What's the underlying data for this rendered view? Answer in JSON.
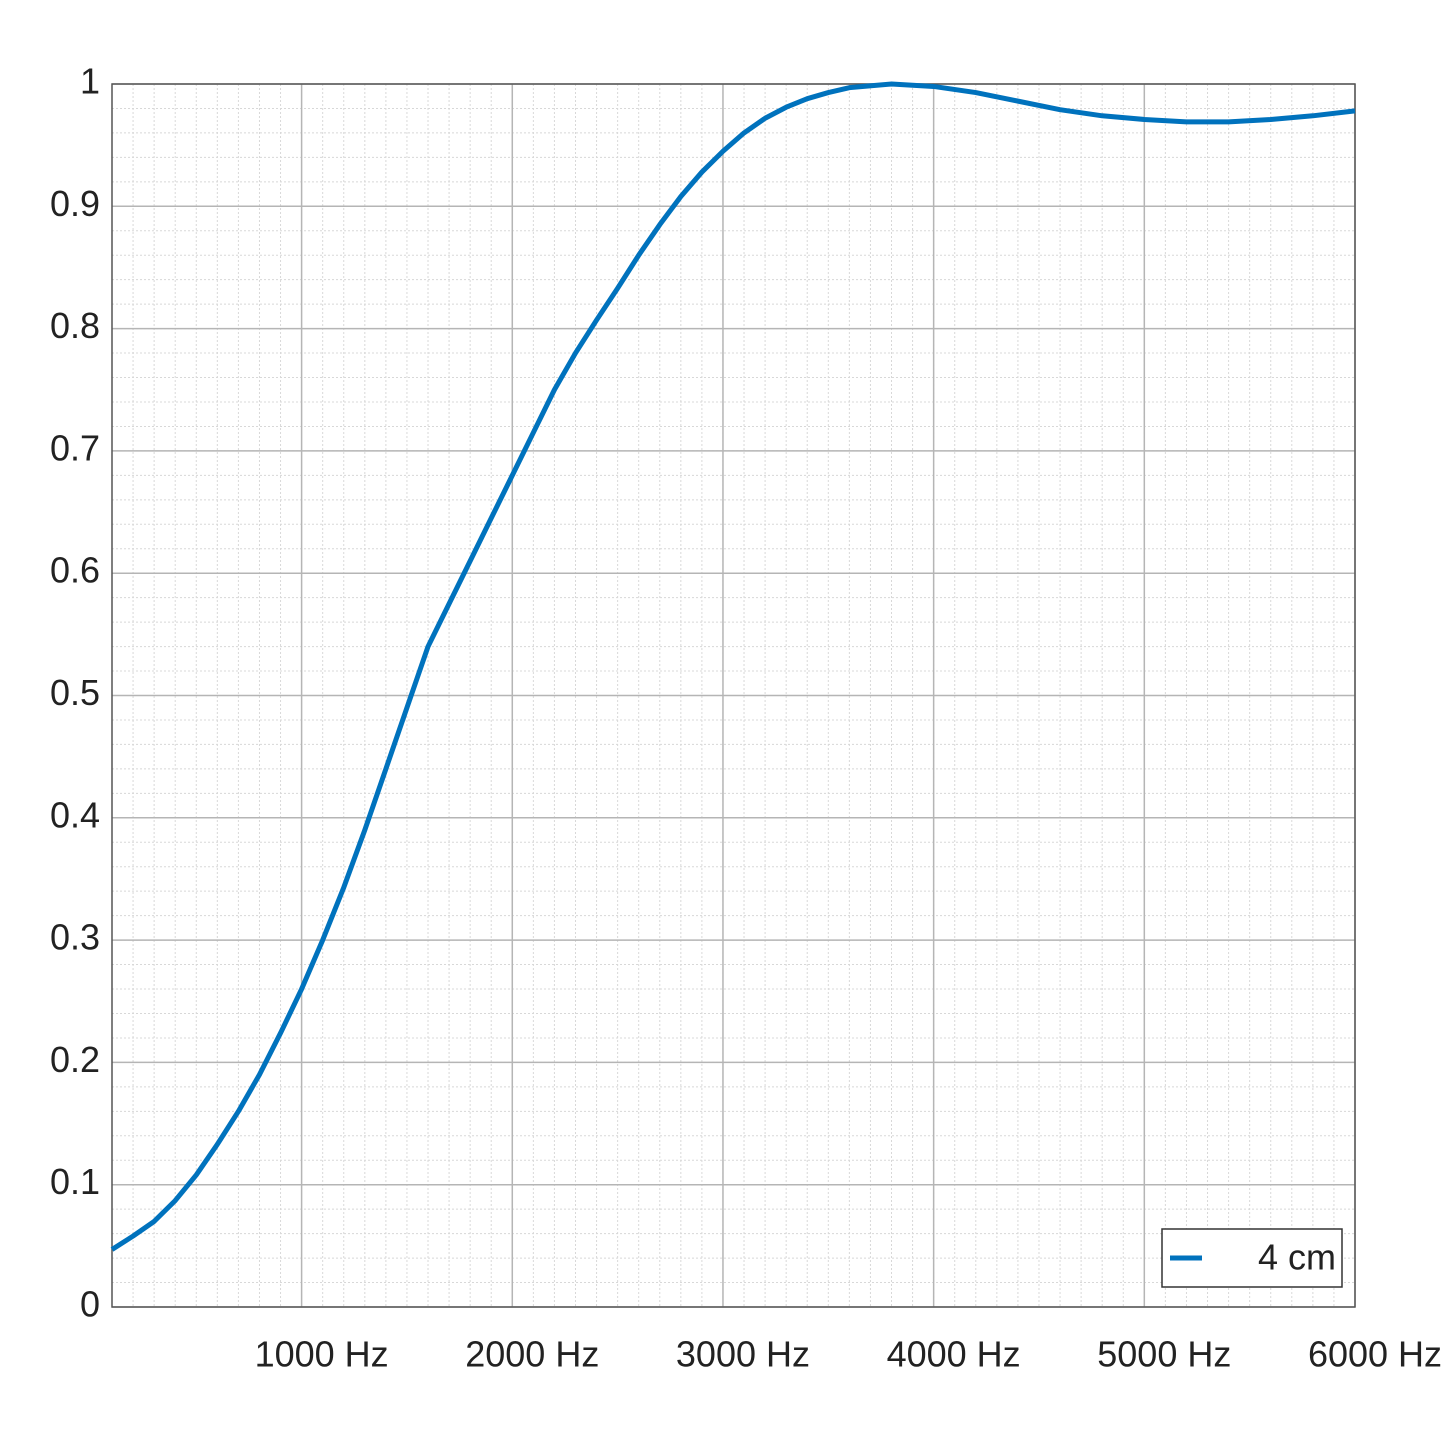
{
  "chart_data": {
    "type": "line",
    "x": [
      100,
      200,
      300,
      400,
      500,
      600,
      700,
      800,
      900,
      1000,
      1100,
      1200,
      1300,
      1400,
      1500,
      1600,
      1700,
      1800,
      1900,
      2000,
      2100,
      2200,
      2300,
      2400,
      2500,
      2600,
      2700,
      2800,
      2900,
      3000,
      3100,
      3200,
      3300,
      3400,
      3500,
      3600,
      3800,
      4000,
      4200,
      4400,
      4600,
      4800,
      5000,
      5200,
      5400,
      5600,
      5800,
      6000
    ],
    "series": [
      {
        "name": "4 cm",
        "color": "#0072bd",
        "values": [
          0.047,
          0.058,
          0.07,
          0.087,
          0.108,
          0.133,
          0.16,
          0.19,
          0.224,
          0.26,
          0.3,
          0.343,
          0.39,
          0.44,
          0.49,
          0.54,
          0.575,
          0.61,
          0.645,
          0.68,
          0.715,
          0.75,
          0.78,
          0.807,
          0.833,
          0.86,
          0.885,
          0.908,
          0.928,
          0.945,
          0.96,
          0.972,
          0.981,
          0.988,
          0.993,
          0.997,
          1.0,
          0.998,
          0.993,
          0.986,
          0.979,
          0.974,
          0.971,
          0.969,
          0.969,
          0.971,
          0.974,
          0.978
        ]
      }
    ],
    "xlim": [
      100,
      6000
    ],
    "xticks": [
      {
        "value": 1000,
        "label": "1000 Hz"
      },
      {
        "value": 2000,
        "label": "2000 Hz"
      },
      {
        "value": 3000,
        "label": "3000 Hz"
      },
      {
        "value": 4000,
        "label": "4000 Hz"
      },
      {
        "value": 5000,
        "label": "5000 Hz"
      },
      {
        "value": 6000,
        "label": "6000 Hz"
      }
    ],
    "ylim": [
      0,
      1
    ],
    "yticks": [
      0,
      0.1,
      0.2,
      0.3,
      0.4,
      0.5,
      0.6,
      0.7,
      0.8,
      0.9,
      1
    ],
    "grid": true,
    "minor_grid": true,
    "legend": "southeast"
  }
}
